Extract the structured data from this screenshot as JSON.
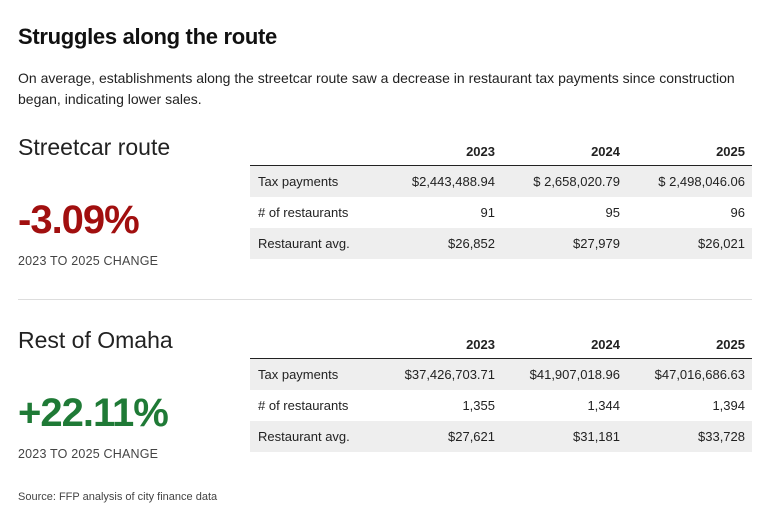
{
  "title": "Struggles along the route",
  "subtitle": "On average, establishments along the streetcar route saw a decrease in restaurant tax payments since construction began, indicating lower sales.",
  "change_label": "2023 TO 2025 CHANGE",
  "source": "Source: FFP analysis of city finance data",
  "colors": {
    "negative": "#a10f0f",
    "positive": "#1f7a36",
    "row_shade": "#eeeeee"
  },
  "chart_data": [
    {
      "type": "table",
      "title": "Streetcar route",
      "change": "-3.09%",
      "columns": [
        "2023",
        "2024",
        "2025"
      ],
      "rows": [
        {
          "label": "Tax payments",
          "values": [
            "$2,443,488.94",
            "$ 2,658,020.79",
            "$ 2,498,046.06"
          ]
        },
        {
          "label": "# of restaurants",
          "values": [
            "91",
            "95",
            "96"
          ]
        },
        {
          "label": "Restaurant avg.",
          "values": [
            "$26,852",
            "$27,979",
            "$26,021"
          ]
        }
      ]
    },
    {
      "type": "table",
      "title": "Rest of Omaha",
      "change": "+22.11%",
      "columns": [
        "2023",
        "2024",
        "2025"
      ],
      "rows": [
        {
          "label": "Tax payments",
          "values": [
            "$37,426,703.71",
            "$41,907,018.96",
            "$47,016,686.63"
          ]
        },
        {
          "label": "# of restaurants",
          "values": [
            "1,355",
            "1,344",
            "1,394"
          ]
        },
        {
          "label": "Restaurant avg.",
          "values": [
            "$27,621",
            "$31,181",
            "$33,728"
          ]
        }
      ]
    }
  ]
}
